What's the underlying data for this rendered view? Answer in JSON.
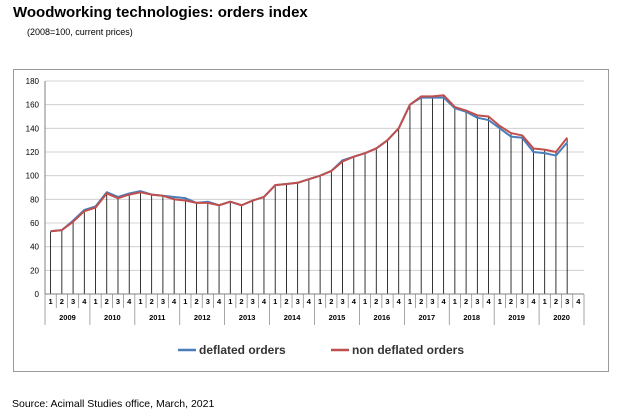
{
  "header": {
    "title": "Woodworking technologies: orders index",
    "subtitle": "(2008=100, current prices)"
  },
  "footer": {
    "source": "Source: Acimall Studies office, March, 2021"
  },
  "chart_data": {
    "type": "line",
    "title": "Woodworking technologies: orders index",
    "subtitle": "(2008=100, current prices)",
    "xlabel": "",
    "ylabel": "",
    "ylim": [
      0,
      180
    ],
    "yticks": [
      0,
      20,
      40,
      60,
      80,
      100,
      120,
      140,
      160,
      180
    ],
    "grid": true,
    "legend_position": "bottom",
    "years": [
      "2009",
      "2010",
      "2011",
      "2012",
      "2013",
      "2014",
      "2015",
      "2016",
      "2017",
      "2018",
      "2019",
      "2020"
    ],
    "quarters": [
      "1",
      "2",
      "3",
      "4"
    ],
    "series": [
      {
        "name": "deflated orders",
        "color": "#4a7ebb",
        "values": [
          53,
          54,
          62,
          71,
          74,
          86,
          82,
          85,
          87,
          84,
          83,
          82,
          81,
          77,
          78,
          75,
          78,
          75,
          79,
          82,
          92,
          93,
          94,
          97,
          100,
          104,
          113,
          116,
          119,
          123,
          130,
          140,
          160,
          166,
          166,
          166,
          157,
          154,
          149,
          147,
          140,
          133,
          132,
          120,
          119,
          117,
          128
        ]
      },
      {
        "name": "non deflated orders",
        "color": "#c0504d",
        "values": [
          53,
          54,
          61,
          70,
          73,
          85,
          81,
          84,
          86,
          84,
          83,
          80,
          79,
          77,
          77,
          75,
          78,
          75,
          79,
          82,
          92,
          93,
          94,
          97,
          100,
          104,
          112,
          116,
          119,
          123,
          130,
          140,
          160,
          167,
          167,
          168,
          158,
          155,
          151,
          150,
          142,
          136,
          134,
          123,
          122,
          120,
          132
        ]
      }
    ]
  }
}
